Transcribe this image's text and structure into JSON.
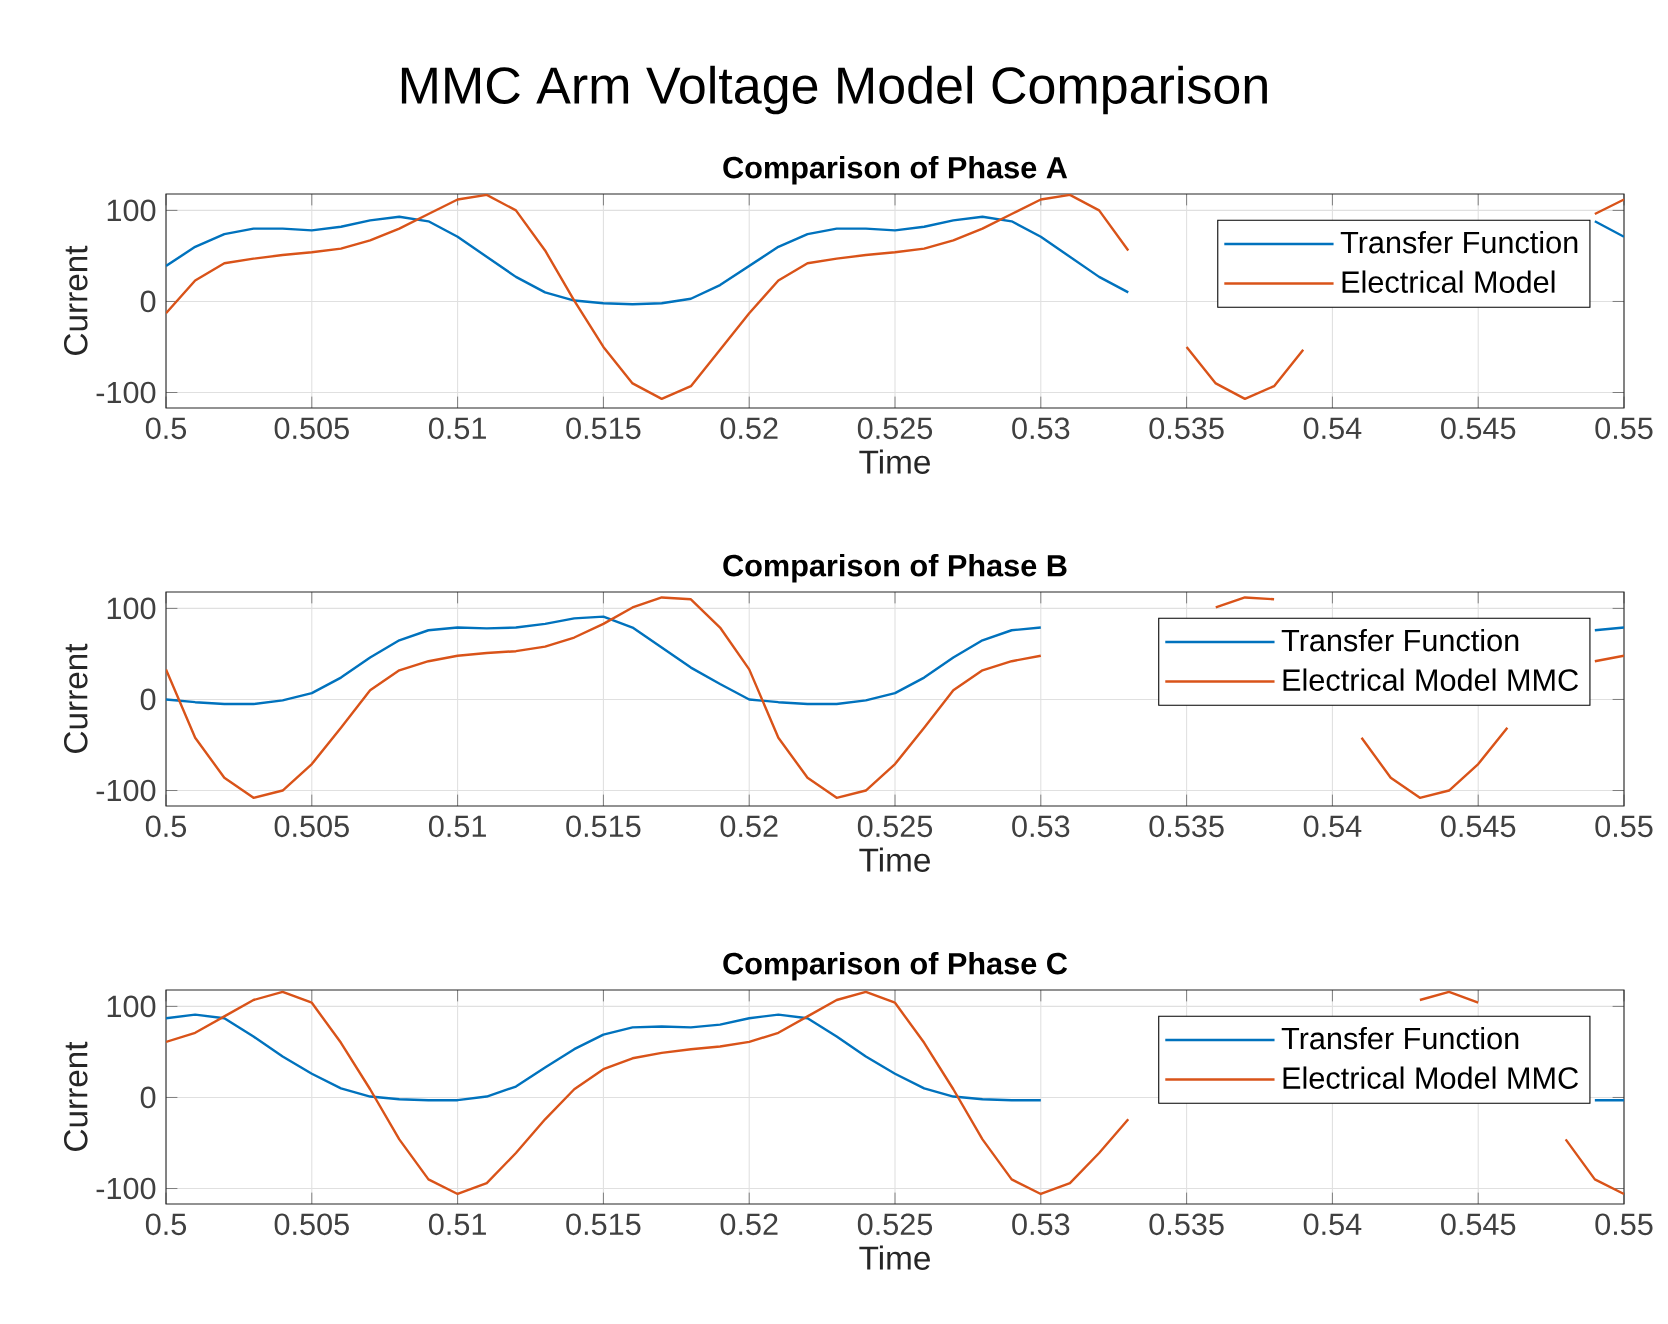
{
  "chart_data": [
    {
      "type": "line",
      "title": "MMC Arm Voltage Model Comparison",
      "subtitle": "Comparison of Phase A",
      "xlabel": "Time",
      "ylabel": "Current",
      "x": [
        0.5,
        0.501,
        0.502,
        0.503,
        0.504,
        0.505,
        0.506,
        0.507,
        0.508,
        0.509,
        0.51,
        0.511,
        0.512,
        0.513,
        0.514,
        0.515,
        0.516,
        0.517,
        0.518,
        0.519,
        0.52,
        0.521,
        0.522,
        0.523,
        0.524,
        0.525,
        0.526,
        0.527,
        0.528,
        0.529,
        0.53,
        0.531,
        0.532,
        0.533,
        0.534,
        0.535,
        0.536,
        0.537,
        0.538,
        0.539,
        0.54,
        0.541,
        0.542,
        0.543,
        0.544,
        0.545,
        0.546,
        0.547,
        0.548,
        0.549,
        0.55
      ],
      "xlim": [
        0.5,
        0.55
      ],
      "xticks": [
        0.5,
        0.505,
        0.51,
        0.515,
        0.52,
        0.525,
        0.53,
        0.535,
        0.54,
        0.545,
        0.55
      ],
      "ylim": [
        -117,
        118
      ],
      "yticks": [
        -100,
        0,
        100
      ],
      "grid": true,
      "legend": "top right",
      "series": [
        {
          "name": "Transfer Function",
          "color": "#0072bd",
          "values": [
            39,
            60,
            74,
            80,
            80,
            78,
            82,
            89,
            93,
            88,
            71,
            49,
            27,
            10,
            1,
            -2,
            -3,
            -2,
            3,
            18,
            39,
            60,
            74,
            80,
            80,
            78,
            82,
            89,
            93,
            88,
            71,
            49,
            27,
            10,
            null,
            null,
            null,
            null,
            null,
            null,
            null,
            null,
            null,
            null,
            null,
            null,
            null,
            null,
            null,
            88,
            71
          ]
        },
        {
          "name": "Electrical Model",
          "color": "#d95319",
          "values": [
            -13,
            23,
            42,
            47,
            51,
            54,
            58,
            67,
            80,
            96,
            112,
            117,
            100,
            56,
            1,
            -50,
            -90,
            -107,
            -93,
            -53,
            -13,
            23,
            42,
            47,
            51,
            54,
            58,
            67,
            80,
            96,
            112,
            117,
            100,
            56,
            null,
            -50,
            -90,
            -107,
            -93,
            -53,
            null,
            null,
            null,
            null,
            null,
            null,
            null,
            null,
            null,
            96,
            112
          ]
        }
      ]
    },
    {
      "type": "line",
      "title": "Comparison of Phase B",
      "xlabel": "Time",
      "ylabel": "Current",
      "x": [
        0.5,
        0.501,
        0.502,
        0.503,
        0.504,
        0.505,
        0.506,
        0.507,
        0.508,
        0.509,
        0.51,
        0.511,
        0.512,
        0.513,
        0.514,
        0.515,
        0.516,
        0.517,
        0.518,
        0.519,
        0.52,
        0.521,
        0.522,
        0.523,
        0.524,
        0.525,
        0.526,
        0.527,
        0.528,
        0.529,
        0.53,
        0.531,
        0.532,
        0.533,
        0.534,
        0.535,
        0.536,
        0.537,
        0.538,
        0.539,
        0.54,
        0.541,
        0.542,
        0.543,
        0.544,
        0.545,
        0.546,
        0.547,
        0.548,
        0.549,
        0.55
      ],
      "xlim": [
        0.5,
        0.55
      ],
      "xticks": [
        0.5,
        0.505,
        0.51,
        0.515,
        0.52,
        0.525,
        0.53,
        0.535,
        0.54,
        0.545,
        0.55
      ],
      "ylim": [
        -117,
        118
      ],
      "yticks": [
        -100,
        0,
        100
      ],
      "grid": true,
      "legend": "top right",
      "series": [
        {
          "name": "Transfer Function",
          "color": "#0072bd",
          "values": [
            0,
            -3,
            -5,
            -5,
            -1,
            7,
            24,
            46,
            65,
            76,
            79,
            78,
            79,
            83,
            89,
            91,
            79,
            57,
            35,
            17,
            0,
            -3,
            -5,
            -5,
            -1,
            7,
            24,
            46,
            65,
            76,
            79,
            null,
            null,
            null,
            null,
            null,
            null,
            null,
            null,
            null,
            null,
            null,
            null,
            null,
            null,
            null,
            null,
            null,
            null,
            76,
            79
          ]
        },
        {
          "name": "Electrical Model MMC",
          "color": "#d95319",
          "values": [
            33,
            -42,
            -86,
            -108,
            -100,
            -71,
            -31,
            10,
            32,
            42,
            48,
            51,
            53,
            58,
            68,
            83,
            101,
            112,
            110,
            79,
            33,
            -42,
            -86,
            -108,
            -100,
            -71,
            -31,
            10,
            32,
            42,
            48,
            null,
            null,
            null,
            null,
            null,
            101,
            112,
            110,
            null,
            null,
            -42,
            -86,
            -108,
            -100,
            -71,
            -31,
            null,
            null,
            42,
            48
          ]
        }
      ]
    },
    {
      "type": "line",
      "title": "Comparison of Phase C",
      "xlabel": "Time",
      "ylabel": "Current",
      "x": [
        0.5,
        0.501,
        0.502,
        0.503,
        0.504,
        0.505,
        0.506,
        0.507,
        0.508,
        0.509,
        0.51,
        0.511,
        0.512,
        0.513,
        0.514,
        0.515,
        0.516,
        0.517,
        0.518,
        0.519,
        0.52,
        0.521,
        0.522,
        0.523,
        0.524,
        0.525,
        0.526,
        0.527,
        0.528,
        0.529,
        0.53,
        0.531,
        0.532,
        0.533,
        0.534,
        0.535,
        0.536,
        0.537,
        0.538,
        0.539,
        0.54,
        0.541,
        0.542,
        0.543,
        0.544,
        0.545,
        0.546,
        0.547,
        0.548,
        0.549,
        0.55
      ],
      "xlim": [
        0.5,
        0.55
      ],
      "xticks": [
        0.5,
        0.505,
        0.51,
        0.515,
        0.52,
        0.525,
        0.53,
        0.535,
        0.54,
        0.545,
        0.55
      ],
      "ylim": [
        -117,
        118
      ],
      "yticks": [
        -100,
        0,
        100
      ],
      "grid": true,
      "legend": "top right",
      "series": [
        {
          "name": "Transfer Function",
          "color": "#0072bd",
          "values": [
            87,
            91,
            87,
            67,
            45,
            26,
            10,
            1,
            -2,
            -3,
            -3,
            1,
            12,
            33,
            53,
            69,
            77,
            78,
            77,
            80,
            87,
            91,
            87,
            67,
            45,
            26,
            10,
            1,
            -2,
            -3,
            -3,
            null,
            null,
            null,
            null,
            null,
            null,
            null,
            null,
            null,
            null,
            null,
            null,
            null,
            null,
            null,
            null,
            null,
            null,
            -3,
            -3
          ]
        },
        {
          "name": "Electrical Model MMC",
          "color": "#d95319",
          "values": [
            61,
            71,
            89,
            107,
            116,
            104,
            60,
            9,
            -46,
            -90,
            -106,
            -94,
            -61,
            -24,
            9,
            31,
            43,
            49,
            53,
            56,
            61,
            71,
            89,
            107,
            116,
            104,
            60,
            9,
            -46,
            -90,
            -106,
            -94,
            -61,
            -24,
            null,
            null,
            null,
            null,
            null,
            null,
            null,
            null,
            null,
            107,
            116,
            104,
            null,
            null,
            -46,
            -90,
            -106
          ]
        }
      ]
    }
  ]
}
